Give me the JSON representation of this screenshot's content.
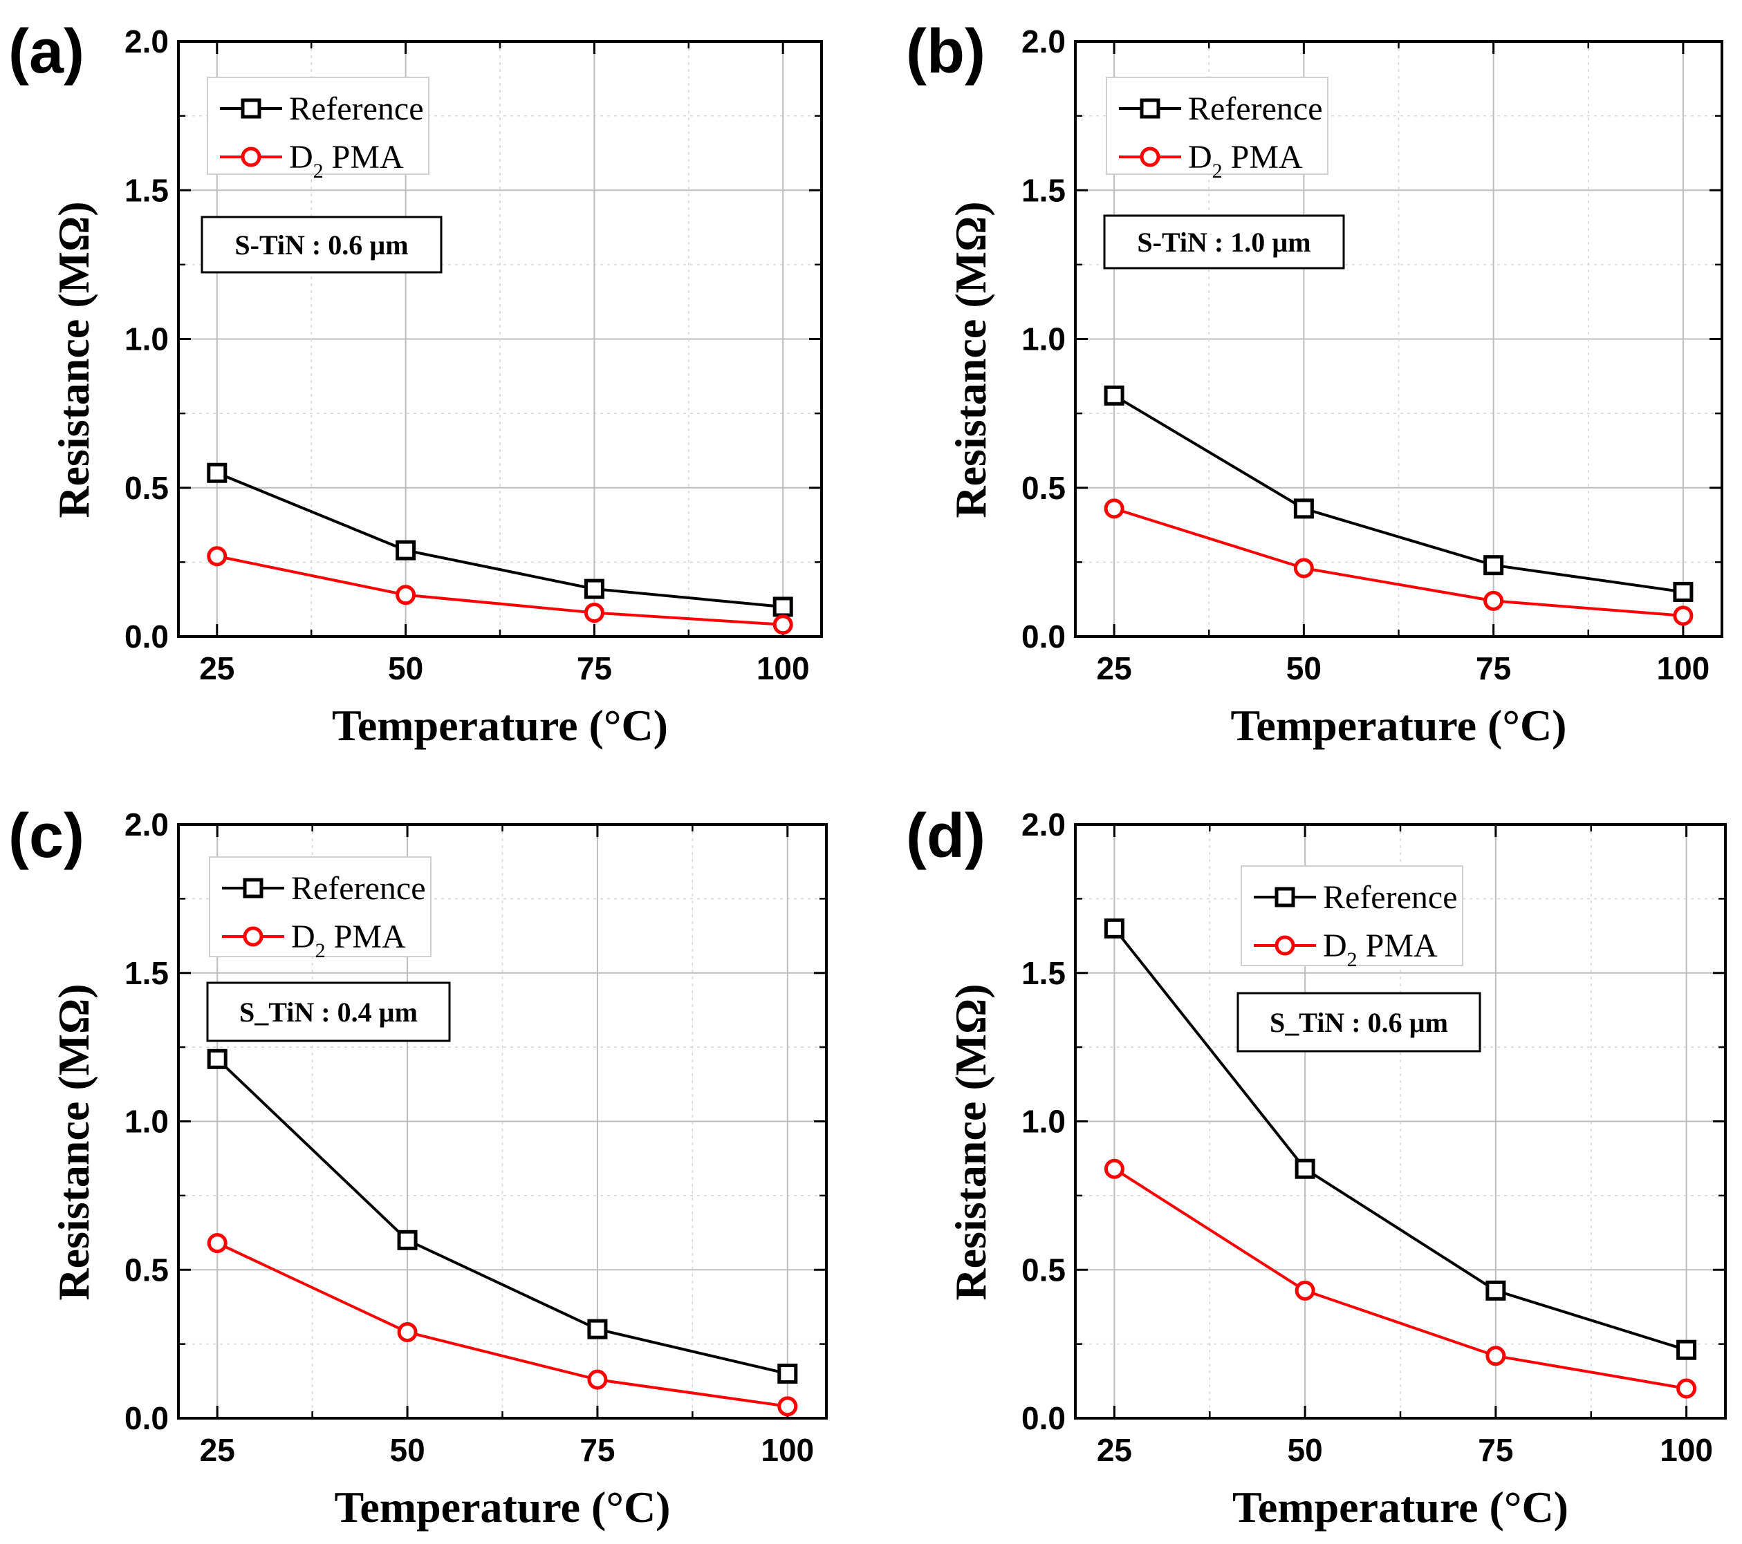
{
  "chart_data": [
    {
      "panel": "(a)",
      "type": "line",
      "x": [
        25,
        50,
        75,
        100
      ],
      "xlabel": "Temperature (°C)",
      "ylabel": "Resistance (MΩ)",
      "xticks": [
        "25",
        "50",
        "75",
        "100"
      ],
      "yticks": [
        "0.0",
        "0.5",
        "1.0",
        "1.5",
        "2.0"
      ],
      "ylim": [
        0,
        2.0
      ],
      "grid": true,
      "annotation": "S-TiN : 0.6 µm",
      "legend_position": "top-left",
      "series": [
        {
          "name": "Reference",
          "prefix": "",
          "sub": "",
          "suffix": "Reference",
          "color": "#000000",
          "marker": "square",
          "values": [
            0.55,
            0.29,
            0.16,
            0.1
          ]
        },
        {
          "name": "D2 PMA",
          "prefix": "D",
          "sub": "2",
          "suffix": " PMA",
          "color": "#ff0000",
          "marker": "circle",
          "values": [
            0.27,
            0.14,
            0.08,
            0.04
          ]
        }
      ]
    },
    {
      "panel": "(b)",
      "type": "line",
      "x": [
        25,
        50,
        75,
        100
      ],
      "xlabel": "Temperature (°C)",
      "ylabel": "Resistance (MΩ)",
      "xticks": [
        "25",
        "50",
        "75",
        "100"
      ],
      "yticks": [
        "0.0",
        "0.5",
        "1.0",
        "1.5",
        "2.0"
      ],
      "ylim": [
        0,
        2.0
      ],
      "grid": true,
      "annotation": "S-TiN : 1.0 µm",
      "legend_position": "top-left",
      "series": [
        {
          "name": "Reference",
          "prefix": "",
          "sub": "",
          "suffix": "Reference",
          "color": "#000000",
          "marker": "square",
          "values": [
            0.81,
            0.43,
            0.24,
            0.15
          ]
        },
        {
          "name": "D2 PMA",
          "prefix": "D",
          "sub": "2",
          "suffix": " PMA",
          "color": "#ff0000",
          "marker": "circle",
          "values": [
            0.43,
            0.23,
            0.12,
            0.07
          ]
        }
      ]
    },
    {
      "panel": "(c)",
      "type": "line",
      "x": [
        25,
        50,
        75,
        100
      ],
      "xlabel": "Temperature (°C)",
      "ylabel": "Resistance (MΩ)",
      "xticks": [
        "25",
        "50",
        "75",
        "100"
      ],
      "yticks": [
        "0.0",
        "0.5",
        "1.0",
        "1.5",
        "2.0"
      ],
      "ylim": [
        0,
        2.0
      ],
      "grid": true,
      "annotation": "S_TiN : 0.4 µm",
      "legend_position": "top-left",
      "series": [
        {
          "name": "Reference",
          "prefix": "",
          "sub": "",
          "suffix": "Reference",
          "color": "#000000",
          "marker": "square",
          "values": [
            1.21,
            0.6,
            0.3,
            0.15
          ]
        },
        {
          "name": "D2 PMA",
          "prefix": "D",
          "sub": "2",
          "suffix": " PMA",
          "color": "#ff0000",
          "marker": "circle",
          "values": [
            0.59,
            0.29,
            0.13,
            0.04
          ]
        }
      ]
    },
    {
      "panel": "(d)",
      "type": "line",
      "x": [
        25,
        50,
        75,
        100
      ],
      "xlabel": "Temperature (°C)",
      "ylabel": "Resistance (MΩ)",
      "xticks": [
        "25",
        "50",
        "75",
        "100"
      ],
      "yticks": [
        "0.0",
        "0.5",
        "1.0",
        "1.5",
        "2.0"
      ],
      "ylim": [
        0,
        2.0
      ],
      "grid": true,
      "annotation": "S_TiN : 0.6 µm",
      "legend_position": "top-center",
      "series": [
        {
          "name": "Reference",
          "prefix": "",
          "sub": "",
          "suffix": "Reference",
          "color": "#000000",
          "marker": "square",
          "values": [
            1.65,
            0.84,
            0.43,
            0.23
          ]
        },
        {
          "name": "D2 PMA",
          "prefix": "D",
          "sub": "2",
          "suffix": " PMA",
          "color": "#ff0000",
          "marker": "circle",
          "values": [
            0.84,
            0.43,
            0.21,
            0.1
          ]
        }
      ]
    }
  ]
}
